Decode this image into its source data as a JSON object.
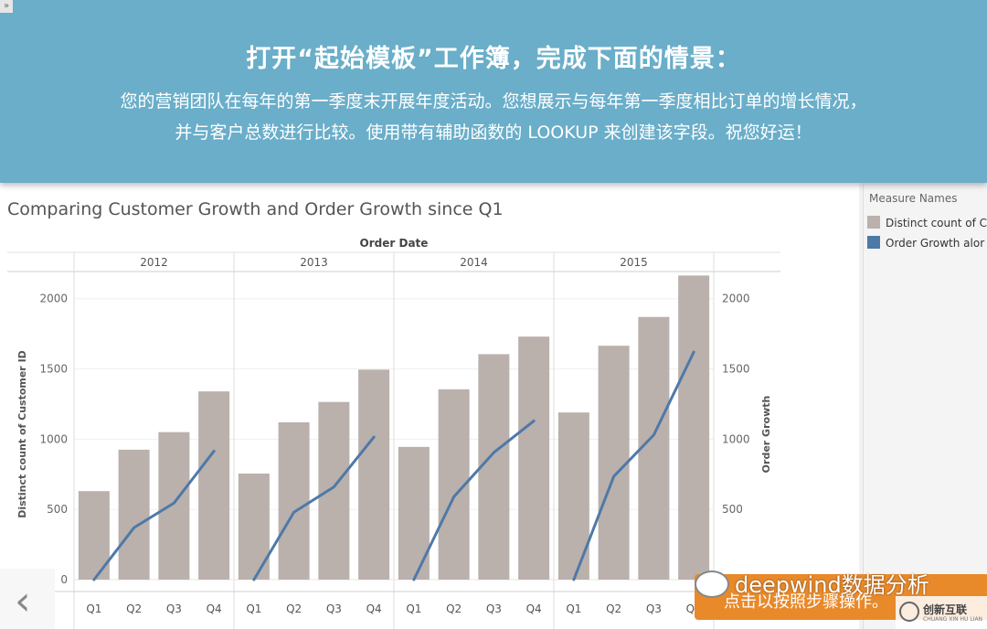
{
  "banner": {
    "title": "打开“起始模板”工作簿，完成下面的情景：",
    "line1": "您的营销团队在每年的第一季度末开展年度活动。您想展示与每年第一季度相比订单的增长情况，",
    "line2": "并与客户总数进行比较。使用带有辅助函数的 LOOKUP 来创建该字段。祝您好运！",
    "corner_glyph": "»"
  },
  "sheet": {
    "title": "Comparing Customer Growth and Order Growth since Q1"
  },
  "legend": {
    "title": "Measure Names",
    "items": [
      {
        "label": "Distinct count of C",
        "color": "#bab0ac"
      },
      {
        "label": "Order Growth alor",
        "color": "#4e79a7"
      }
    ]
  },
  "chart_data": {
    "type": "bar",
    "column_header_title": "Order Date",
    "years": [
      "2012",
      "2013",
      "2014",
      "2015"
    ],
    "quarters": [
      "Q1",
      "Q2",
      "Q3",
      "Q4"
    ],
    "ylabel_left": "Distinct count of Customer ID",
    "ylabel_right": "Order Growth",
    "yticks_left": [
      0,
      500,
      1000,
      1500,
      2000
    ],
    "yticks_right": [
      500,
      1000,
      1500,
      2000
    ],
    "ylim": [
      0,
      2200
    ],
    "series": [
      {
        "name": "Distinct count of C",
        "kind": "bar",
        "color": "#bab0ac",
        "values": [
          [
            630,
            925,
            1050,
            1340
          ],
          [
            755,
            1120,
            1265,
            1495
          ],
          [
            945,
            1355,
            1605,
            1730
          ],
          [
            1190,
            1665,
            1870,
            2165
          ]
        ]
      },
      {
        "name": "Order Growth alor",
        "kind": "line",
        "color": "#4e79a7",
        "values": [
          [
            0,
            370,
            545,
            915
          ],
          [
            0,
            480,
            660,
            1015
          ],
          [
            0,
            590,
            905,
            1130
          ],
          [
            0,
            735,
            1030,
            1620
          ]
        ]
      }
    ]
  },
  "nav": {
    "prev_glyph": "‹"
  },
  "toast": {
    "text": "点击以按照步骤操作。"
  },
  "watermark": {
    "text": "deepwind数据分析"
  },
  "brand": {
    "text": "创新互联",
    "sub": "CHUANG XIN HU LIAN"
  }
}
